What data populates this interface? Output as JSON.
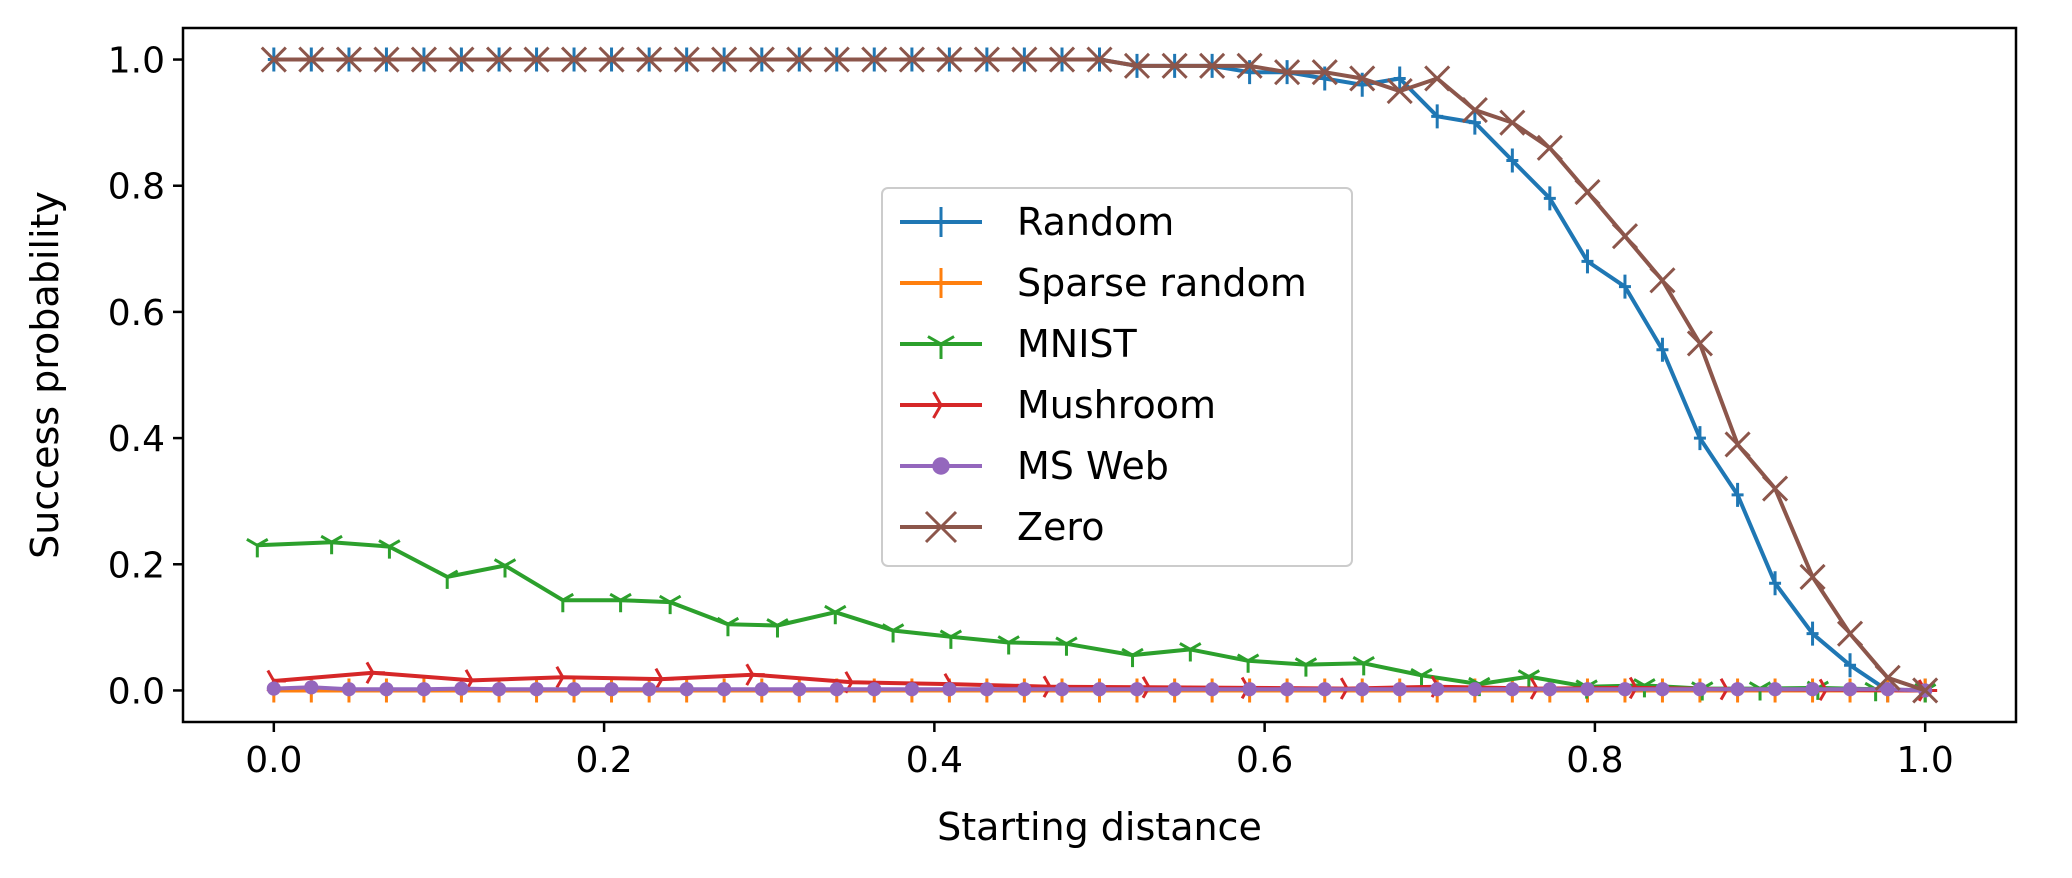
{
  "chart_data": {
    "type": "line",
    "title": "",
    "xlabel": "Starting distance",
    "ylabel": "Success probability",
    "xlim": [
      -0.055,
      1.055
    ],
    "ylim": [
      -0.05,
      1.05
    ],
    "x_ticks": [
      "0.0",
      "0.2",
      "0.4",
      "0.6",
      "0.8",
      "1.0"
    ],
    "y_ticks": [
      "0.0",
      "0.2",
      "0.4",
      "0.6",
      "0.8",
      "1.0"
    ],
    "grid": false,
    "legend_position": "center",
    "series": [
      {
        "name": "Random",
        "color": "#1f77b4",
        "marker": "plus",
        "x": [
          0.0,
          0.0227,
          0.0455,
          0.0682,
          0.0909,
          0.1136,
          0.1364,
          0.1591,
          0.1818,
          0.2045,
          0.2273,
          0.25,
          0.2727,
          0.2955,
          0.3182,
          0.3409,
          0.3636,
          0.3864,
          0.4091,
          0.4318,
          0.4545,
          0.4773,
          0.5,
          0.5227,
          0.5455,
          0.5682,
          0.5909,
          0.6136,
          0.6364,
          0.6591,
          0.6818,
          0.7045,
          0.7273,
          0.75,
          0.7727,
          0.7955,
          0.8182,
          0.8409,
          0.8636,
          0.8864,
          0.9091,
          0.9318,
          0.9545,
          0.9773,
          1.0
        ],
        "values": [
          1.0,
          1.0,
          1.0,
          1.0,
          1.0,
          1.0,
          1.0,
          1.0,
          1.0,
          1.0,
          1.0,
          1.0,
          1.0,
          1.0,
          1.0,
          1.0,
          1.0,
          1.0,
          1.0,
          1.0,
          1.0,
          1.0,
          1.0,
          0.99,
          0.99,
          0.99,
          0.98,
          0.98,
          0.97,
          0.96,
          0.97,
          0.91,
          0.9,
          0.84,
          0.78,
          0.68,
          0.64,
          0.54,
          0.4,
          0.31,
          0.17,
          0.09,
          0.04,
          0.0,
          0.0
        ]
      },
      {
        "name": "Sparse random",
        "color": "#ff7f0e",
        "marker": "plus",
        "x": [
          0.0,
          0.0227,
          0.0455,
          0.0682,
          0.0909,
          0.1136,
          0.1364,
          0.1591,
          0.1818,
          0.2045,
          0.2273,
          0.25,
          0.2727,
          0.2955,
          0.3182,
          0.3409,
          0.3636,
          0.3864,
          0.4091,
          0.4318,
          0.4545,
          0.4773,
          0.5,
          0.5227,
          0.5455,
          0.5682,
          0.5909,
          0.6136,
          0.6364,
          0.6591,
          0.6818,
          0.7045,
          0.7273,
          0.75,
          0.7727,
          0.7955,
          0.8182,
          0.8409,
          0.8636,
          0.8864,
          0.9091,
          0.9318,
          0.9545,
          0.9773,
          1.0
        ],
        "values": [
          0.0,
          0.0,
          0.0,
          0.0,
          0.0,
          0.0,
          0.0,
          0.0,
          0.0,
          0.0,
          0.0,
          0.0,
          0.0,
          0.0,
          0.0,
          0.0,
          0.0,
          0.0,
          0.0,
          0.0,
          0.0,
          0.0,
          0.0,
          0.0,
          0.0,
          0.0,
          0.0,
          0.0,
          0.0,
          0.0,
          0.0,
          0.0,
          0.0,
          0.0,
          0.0,
          0.0,
          0.0,
          0.0,
          0.0,
          0.0,
          0.0,
          0.0,
          0.0,
          0.0,
          0.0
        ]
      },
      {
        "name": "MNIST",
        "color": "#2ca02c",
        "marker": "tri_down",
        "x": [
          -0.01,
          0.035,
          0.07,
          0.105,
          0.14,
          0.175,
          0.21,
          0.24,
          0.275,
          0.305,
          0.34,
          0.375,
          0.41,
          0.445,
          0.48,
          0.52,
          0.555,
          0.59,
          0.625,
          0.66,
          0.695,
          0.73,
          0.76,
          0.795,
          0.83,
          0.865,
          0.9,
          0.935,
          0.97,
          1.0
        ],
        "values": [
          0.23,
          0.235,
          0.228,
          0.18,
          0.198,
          0.143,
          0.143,
          0.14,
          0.105,
          0.103,
          0.124,
          0.095,
          0.085,
          0.076,
          0.074,
          0.056,
          0.065,
          0.047,
          0.041,
          0.043,
          0.024,
          0.01,
          0.022,
          0.006,
          0.008,
          0.003,
          0.003,
          0.004,
          0.002,
          0.0
        ]
      },
      {
        "name": "Mushroom",
        "color": "#d62728",
        "marker": "tri_right",
        "x": [
          0.0,
          0.06,
          0.12,
          0.175,
          0.235,
          0.29,
          0.35,
          0.41,
          0.47,
          0.53,
          0.59,
          0.65,
          0.705,
          0.765,
          0.825,
          0.88,
          0.94,
          1.0
        ],
        "values": [
          0.015,
          0.028,
          0.016,
          0.021,
          0.018,
          0.025,
          0.013,
          0.01,
          0.006,
          0.005,
          0.004,
          0.003,
          0.006,
          0.003,
          0.004,
          0.002,
          0.001,
          0.0
        ]
      },
      {
        "name": "MS Web",
        "color": "#9467bd",
        "marker": "circle",
        "x": [
          0.0,
          0.0227,
          0.0455,
          0.0682,
          0.0909,
          0.1136,
          0.1364,
          0.1591,
          0.1818,
          0.2045,
          0.2273,
          0.25,
          0.2727,
          0.2955,
          0.3182,
          0.3409,
          0.3636,
          0.3864,
          0.4091,
          0.4318,
          0.4545,
          0.4773,
          0.5,
          0.5227,
          0.5455,
          0.5682,
          0.5909,
          0.6136,
          0.6364,
          0.6591,
          0.6818,
          0.7045,
          0.7273,
          0.75,
          0.7727,
          0.7955,
          0.8182,
          0.8409,
          0.8636,
          0.8864,
          0.9091,
          0.9318,
          0.9545,
          0.9773,
          1.0
        ],
        "values": [
          0.003,
          0.005,
          0.002,
          0.002,
          0.002,
          0.003,
          0.002,
          0.002,
          0.002,
          0.002,
          0.002,
          0.002,
          0.002,
          0.002,
          0.002,
          0.002,
          0.002,
          0.002,
          0.002,
          0.002,
          0.002,
          0.002,
          0.002,
          0.002,
          0.002,
          0.002,
          0.002,
          0.002,
          0.002,
          0.002,
          0.002,
          0.002,
          0.002,
          0.002,
          0.002,
          0.002,
          0.002,
          0.002,
          0.002,
          0.002,
          0.002,
          0.002,
          0.002,
          0.002,
          0.0
        ]
      },
      {
        "name": "Zero",
        "color": "#8c564b",
        "marker": "x",
        "x": [
          0.0,
          0.0227,
          0.0455,
          0.0682,
          0.0909,
          0.1136,
          0.1364,
          0.1591,
          0.1818,
          0.2045,
          0.2273,
          0.25,
          0.2727,
          0.2955,
          0.3182,
          0.3409,
          0.3636,
          0.3864,
          0.4091,
          0.4318,
          0.4545,
          0.4773,
          0.5,
          0.5227,
          0.5455,
          0.5682,
          0.5909,
          0.6136,
          0.6364,
          0.6591,
          0.6818,
          0.7045,
          0.7273,
          0.75,
          0.7727,
          0.7955,
          0.8182,
          0.8409,
          0.8636,
          0.8864,
          0.9091,
          0.9318,
          0.9545,
          0.9773,
          1.0
        ],
        "values": [
          1.0,
          1.0,
          1.0,
          1.0,
          1.0,
          1.0,
          1.0,
          1.0,
          1.0,
          1.0,
          1.0,
          1.0,
          1.0,
          1.0,
          1.0,
          1.0,
          1.0,
          1.0,
          1.0,
          1.0,
          1.0,
          1.0,
          1.0,
          0.99,
          0.99,
          0.99,
          0.99,
          0.98,
          0.98,
          0.97,
          0.95,
          0.97,
          0.92,
          0.9,
          0.86,
          0.79,
          0.72,
          0.65,
          0.55,
          0.39,
          0.32,
          0.18,
          0.09,
          0.02,
          0.0
        ]
      }
    ]
  }
}
